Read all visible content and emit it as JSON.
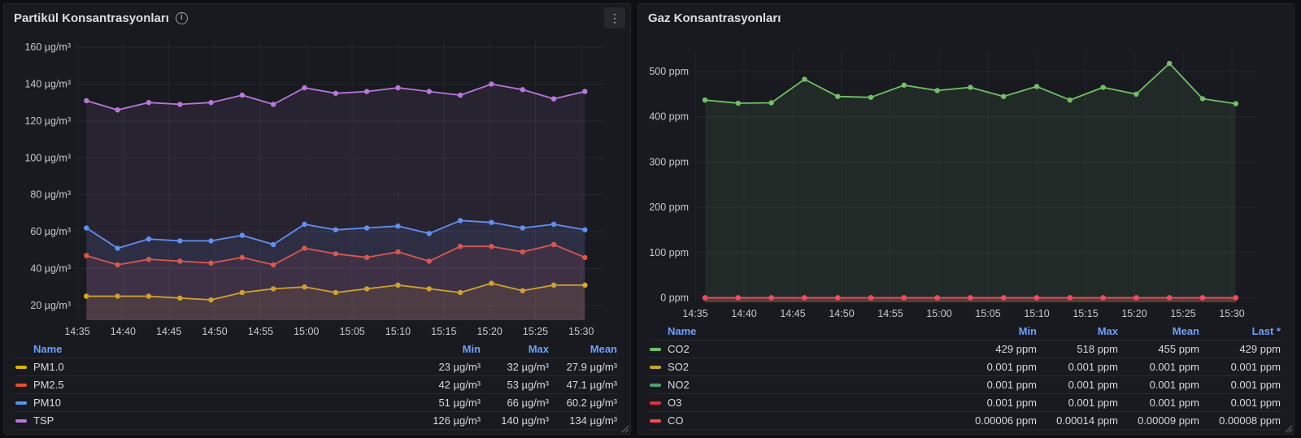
{
  "panels": [
    {
      "title": "Partikül Konsantrasyonları",
      "info_icon_glyph": "i",
      "menu_icon_glyph": "⋮",
      "legend": {
        "name_header": "Name",
        "columns": [
          "Min",
          "Max",
          "Mean"
        ],
        "rows": [
          {
            "label": "PM1.0",
            "color": "#E0B400",
            "values": [
              "23 µg/m³",
              "32 µg/m³",
              "27.9 µg/m³"
            ]
          },
          {
            "label": "PM2.5",
            "color": "#E8502E",
            "values": [
              "42 µg/m³",
              "53 µg/m³",
              "47.1 µg/m³"
            ]
          },
          {
            "label": "PM10",
            "color": "#5794F2",
            "values": [
              "51 µg/m³",
              "66 µg/m³",
              "60.2 µg/m³"
            ]
          },
          {
            "label": "TSP",
            "color": "#B877D9",
            "values": [
              "126 µg/m³",
              "140 µg/m³",
              "134 µg/m³"
            ]
          }
        ]
      }
    },
    {
      "title": "Gaz Konsantrasyonları",
      "menu_icon_glyph": "⋮",
      "legend": {
        "name_header": "Name",
        "columns": [
          "Min",
          "Max",
          "Mean",
          "Last *"
        ],
        "rows": [
          {
            "label": "CO2",
            "color": "#73BF69",
            "values": [
              "429 ppm",
              "518 ppm",
              "455 ppm",
              "429 ppm"
            ]
          },
          {
            "label": "SO2",
            "color": "#C4A62A",
            "values": [
              "0.001 ppm",
              "0.001 ppm",
              "0.001 ppm",
              "0.001 ppm"
            ]
          },
          {
            "label": "NO2",
            "color": "#4E9E77",
            "values": [
              "0.001 ppm",
              "0.001 ppm",
              "0.001 ppm",
              "0.001 ppm"
            ]
          },
          {
            "label": "O3",
            "color": "#E02F44",
            "values": [
              "0.001 ppm",
              "0.001 ppm",
              "0.001 ppm",
              "0.001 ppm"
            ]
          },
          {
            "label": "CO",
            "color": "#F2495C",
            "values": [
              "0.00006 ppm",
              "0.00014 ppm",
              "0.00009 ppm",
              "0.00008 ppm"
            ]
          }
        ]
      }
    }
  ],
  "chart_data": [
    {
      "type": "line",
      "title": "Partikül Konsantrasyonları",
      "legend_position": "bottom",
      "grid": true,
      "y_unit": "µg/m³",
      "y_ticks": [
        20,
        40,
        60,
        80,
        100,
        120,
        140,
        160
      ],
      "ylim": [
        12,
        164
      ],
      "xlim_minutes": [
        0,
        57.5
      ],
      "x_tick_minutes": [
        0,
        5,
        10,
        15,
        20,
        25,
        30,
        35,
        40,
        45,
        50,
        55
      ],
      "x_tick_labels": [
        "14:35",
        "14:40",
        "14:45",
        "14:50",
        "14:55",
        "15:00",
        "15:05",
        "15:10",
        "15:15",
        "15:20",
        "15:25",
        "15:30"
      ],
      "points_x_minutes": [
        1,
        4.4,
        7.8,
        11.2,
        14.6,
        18,
        21.4,
        24.8,
        28.2,
        31.6,
        35,
        38.4,
        41.8,
        45.2,
        48.6,
        52,
        55.4
      ],
      "series": [
        {
          "name": "PM1.0",
          "color": "#E0B400",
          "values": [
            25,
            25,
            25,
            24,
            23,
            27,
            29,
            30,
            27,
            29,
            31,
            29,
            27,
            32,
            28,
            31,
            31
          ]
        },
        {
          "name": "PM2.5",
          "color": "#E8502E",
          "values": [
            47,
            42,
            45,
            44,
            43,
            46,
            42,
            51,
            48,
            46,
            49,
            44,
            52,
            52,
            49,
            53,
            46
          ]
        },
        {
          "name": "PM10",
          "color": "#5794F2",
          "values": [
            62,
            51,
            56,
            55,
            55,
            58,
            53,
            64,
            61,
            62,
            63,
            59,
            66,
            65,
            62,
            64,
            61
          ]
        },
        {
          "name": "TSP",
          "color": "#B877D9",
          "values": [
            131,
            126,
            130,
            129,
            130,
            134,
            129,
            138,
            135,
            136,
            138,
            136,
            134,
            140,
            137,
            132,
            136
          ]
        }
      ],
      "stats": {
        "PM1.0": {
          "min": 23,
          "max": 32,
          "mean": 27.9
        },
        "PM2.5": {
          "min": 42,
          "max": 53,
          "mean": 47.1
        },
        "PM10": {
          "min": 51,
          "max": 66,
          "mean": 60.2
        },
        "TSP": {
          "min": 126,
          "max": 140,
          "mean": 134
        }
      }
    },
    {
      "type": "line",
      "title": "Gaz Konsantrasyonları",
      "legend_position": "bottom",
      "grid": true,
      "y_unit": "ppm",
      "y_ticks": [
        0,
        100,
        200,
        300,
        400,
        500
      ],
      "ylim": [
        -10,
        545
      ],
      "xlim_minutes": [
        0,
        57.5
      ],
      "x_tick_minutes": [
        0,
        5,
        10,
        15,
        20,
        25,
        30,
        35,
        40,
        45,
        50,
        55
      ],
      "x_tick_labels": [
        "14:35",
        "14:40",
        "14:45",
        "14:50",
        "14:55",
        "15:00",
        "15:05",
        "15:10",
        "15:15",
        "15:20",
        "15:25",
        "15:30"
      ],
      "points_x_minutes": [
        1,
        4.4,
        7.8,
        11.2,
        14.6,
        18,
        21.4,
        24.8,
        28.2,
        31.6,
        35,
        38.4,
        41.8,
        45.2,
        48.6,
        52,
        55.4
      ],
      "series": [
        {
          "name": "CO2",
          "color": "#73BF69",
          "values": [
            437,
            430,
            431,
            483,
            445,
            443,
            470,
            458,
            465,
            445,
            467,
            437,
            465,
            450,
            518,
            440,
            429
          ]
        },
        {
          "name": "SO2",
          "color": "#C4A62A",
          "values": [
            0.001,
            0.001,
            0.001,
            0.001,
            0.001,
            0.001,
            0.001,
            0.001,
            0.001,
            0.001,
            0.001,
            0.001,
            0.001,
            0.001,
            0.001,
            0.001,
            0.001
          ]
        },
        {
          "name": "NO2",
          "color": "#4E9E77",
          "values": [
            0.001,
            0.001,
            0.001,
            0.001,
            0.001,
            0.001,
            0.001,
            0.001,
            0.001,
            0.001,
            0.001,
            0.001,
            0.001,
            0.001,
            0.001,
            0.001,
            0.001
          ]
        },
        {
          "name": "O3",
          "color": "#E02F44",
          "values": [
            0.001,
            0.001,
            0.001,
            0.001,
            0.001,
            0.001,
            0.001,
            0.001,
            0.001,
            0.001,
            0.001,
            0.001,
            0.001,
            0.001,
            0.001,
            0.001,
            0.001
          ]
        },
        {
          "name": "CO",
          "color": "#F2495C",
          "values": [
            0.0001,
            0.0001,
            0.0001,
            0.0001,
            0.0001,
            0.0001,
            0.0001,
            0.0001,
            0.0001,
            0.0001,
            0.0001,
            0.0001,
            0.0001,
            0.0001,
            0.0001,
            0.0001,
            0.0001
          ]
        }
      ],
      "stats": {
        "CO2": {
          "min": 429,
          "max": 518,
          "mean": 455,
          "last": 429
        },
        "SO2": {
          "min": 0.001,
          "max": 0.001,
          "mean": 0.001,
          "last": 0.001
        },
        "NO2": {
          "min": 0.001,
          "max": 0.001,
          "mean": 0.001,
          "last": 0.001
        },
        "O3": {
          "min": 0.001,
          "max": 0.001,
          "mean": 0.001,
          "last": 0.001
        },
        "CO": {
          "min": 6e-05,
          "max": 0.00014,
          "mean": 9e-05,
          "last": 8e-05
        }
      }
    }
  ]
}
